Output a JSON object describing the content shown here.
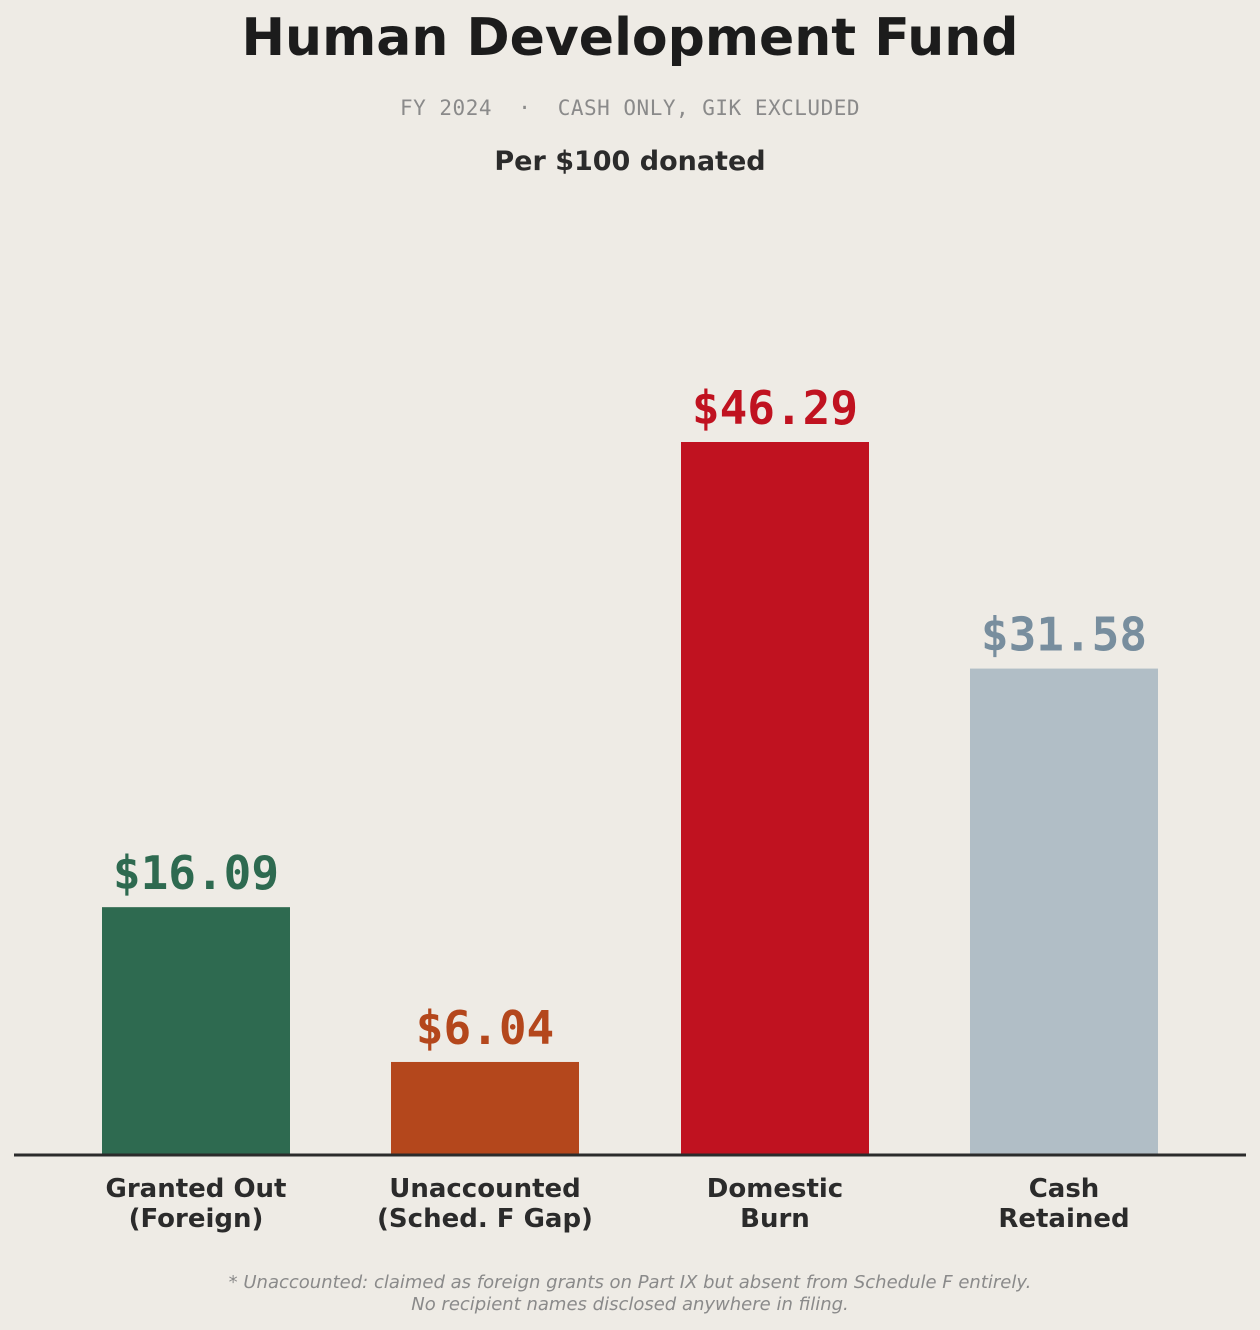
{
  "header": {
    "title": "Human Development Fund",
    "subtitle": "FY 2024  ·  CASH ONLY, GIK EXCLUDED",
    "unit_label": "Per $100 donated"
  },
  "footnote": {
    "line1": "* Unaccounted: claimed as foreign grants on Part IX but absent from Schedule F entirely.",
    "line2": "No recipient names disclosed anywhere in filing."
  },
  "chart_data": {
    "type": "bar",
    "title": "Human Development Fund",
    "subtitle": "Per $100 donated",
    "categories": [
      [
        "Granted Out",
        "(Foreign)"
      ],
      [
        "Unaccounted",
        "(Sched. F Gap)"
      ],
      [
        "Domestic",
        "Burn"
      ],
      [
        "Cash",
        "Retained"
      ]
    ],
    "values": [
      16.09,
      6.04,
      46.29,
      31.58
    ],
    "value_labels": [
      "$16.09",
      "$6.04",
      "$46.29",
      "$31.58"
    ],
    "bar_colors": [
      "#2e6a50",
      "#b4471c",
      "#c01220",
      "#b1bec6"
    ],
    "label_colors": [
      "#2e6a50",
      "#b4471c",
      "#c01220",
      "#788e9e"
    ],
    "ylim": [
      0,
      62
    ],
    "grid": false,
    "legend": "none"
  }
}
